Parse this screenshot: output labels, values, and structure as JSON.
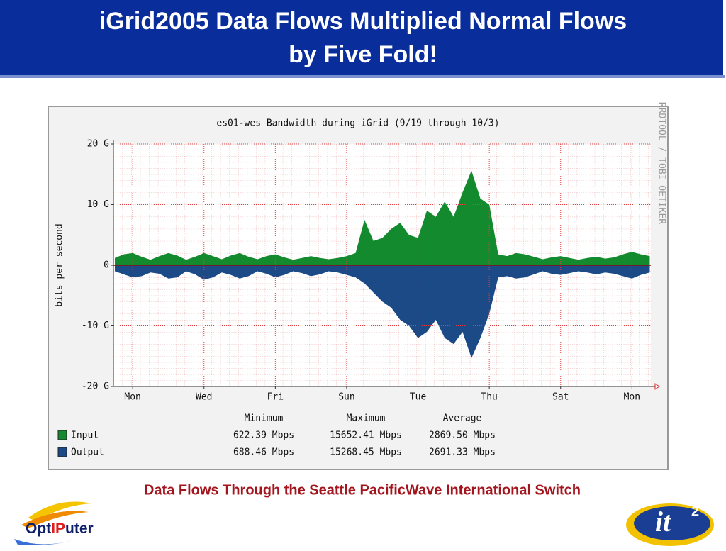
{
  "slide": {
    "title": [
      "iGrid2005 Data Flows Multiplied Normal Flows",
      "by Five Fold!"
    ],
    "caption": "Data Flows Through the Seattle PacificWave International Switch",
    "logo_left": [
      "Opt",
      "IP",
      "uter"
    ],
    "logo_right": [
      "it",
      "2"
    ]
  },
  "chart_data": {
    "type": "area",
    "title": "es01-wes Bandwidth during iGrid (9/19 through 10/3)",
    "ylabel": "bits per second",
    "credit": "RRDTOOL / TOBI OETIKER",
    "x": [
      -0.5,
      -0.25,
      0,
      0.25,
      0.5,
      0.75,
      1,
      1.25,
      1.5,
      1.75,
      2,
      2.25,
      2.5,
      2.75,
      3,
      3.25,
      3.5,
      3.75,
      4,
      4.25,
      4.5,
      4.75,
      5,
      5.25,
      5.5,
      5.75,
      6,
      6.25,
      6.5,
      6.75,
      7,
      7.25,
      7.5,
      7.75,
      8,
      8.25,
      8.5,
      8.75,
      9,
      9.25,
      9.5,
      9.75,
      10,
      10.25,
      10.5,
      10.75,
      11,
      11.25,
      11.5,
      11.75,
      12,
      12.25,
      12.5,
      12.75,
      13,
      13.25,
      13.5,
      13.75,
      14,
      14.25,
      14.5
    ],
    "xlim": [
      -0.54,
      14.53
    ],
    "xticks": [
      {
        "value": 0,
        "label": "Mon"
      },
      {
        "value": 2,
        "label": "Wed"
      },
      {
        "value": 4,
        "label": "Fri"
      },
      {
        "value": 6,
        "label": "Sun"
      },
      {
        "value": 8,
        "label": "Tue"
      },
      {
        "value": 10,
        "label": "Thu"
      },
      {
        "value": 12,
        "label": "Sat"
      },
      {
        "value": 14,
        "label": "Mon"
      }
    ],
    "ylim": [
      -20,
      20
    ],
    "yticks": [
      {
        "value": 20,
        "label": "20 G"
      },
      {
        "value": 10,
        "label": "10 G"
      },
      0,
      {
        "value": -10,
        "label": "-10 G"
      },
      {
        "value": -20,
        "label": "-20 G"
      }
    ],
    "grid": true,
    "series": [
      {
        "name": "Input",
        "color": "#138a2e",
        "values": [
          1.2,
          1.8,
          2.0,
          1.4,
          0.9,
          1.5,
          2.0,
          1.6,
          0.9,
          1.4,
          2.0,
          1.5,
          1.0,
          1.6,
          2.0,
          1.4,
          1.0,
          1.5,
          1.8,
          1.3,
          0.9,
          1.2,
          1.5,
          1.2,
          1.0,
          1.2,
          1.5,
          2.0,
          7.5,
          4.0,
          4.5,
          6.0,
          7.0,
          5.0,
          4.5,
          9.0,
          8.0,
          10.5,
          8.0,
          12.0,
          15.6,
          11.0,
          10.0,
          1.8,
          1.5,
          2.0,
          1.8,
          1.4,
          1.0,
          1.3,
          1.5,
          1.2,
          0.9,
          1.2,
          1.4,
          1.1,
          1.3,
          1.8,
          2.2,
          1.8,
          1.5
        ]
      },
      {
        "name": "Output",
        "color": "#1b4a86",
        "values": [
          -1.0,
          -1.5,
          -2.0,
          -1.8,
          -1.2,
          -1.4,
          -2.2,
          -2.0,
          -1.0,
          -1.5,
          -2.4,
          -2.0,
          -1.2,
          -1.6,
          -2.2,
          -1.8,
          -1.0,
          -1.4,
          -2.0,
          -1.6,
          -1.0,
          -1.3,
          -1.8,
          -1.5,
          -1.0,
          -1.2,
          -1.6,
          -2.0,
          -3.0,
          -4.5,
          -6.0,
          -7.0,
          -9.0,
          -10.0,
          -12.0,
          -11.0,
          -9.0,
          -12.0,
          -13.0,
          -11.0,
          -15.3,
          -12.0,
          -8.0,
          -2.0,
          -1.8,
          -2.2,
          -2.0,
          -1.5,
          -1.0,
          -1.4,
          -1.6,
          -1.3,
          -1.0,
          -1.2,
          -1.5,
          -1.2,
          -1.4,
          -1.8,
          -2.2,
          -1.6,
          -1.2
        ]
      }
    ],
    "stats": {
      "columns": [
        "Minimum",
        "Maximum",
        "Average"
      ],
      "rows": [
        [
          "622.39 Mbps",
          "15652.41 Mbps",
          "2869.50 Mbps"
        ],
        [
          "688.46 Mbps",
          "15268.45 Mbps",
          "2691.33 Mbps"
        ]
      ]
    }
  }
}
